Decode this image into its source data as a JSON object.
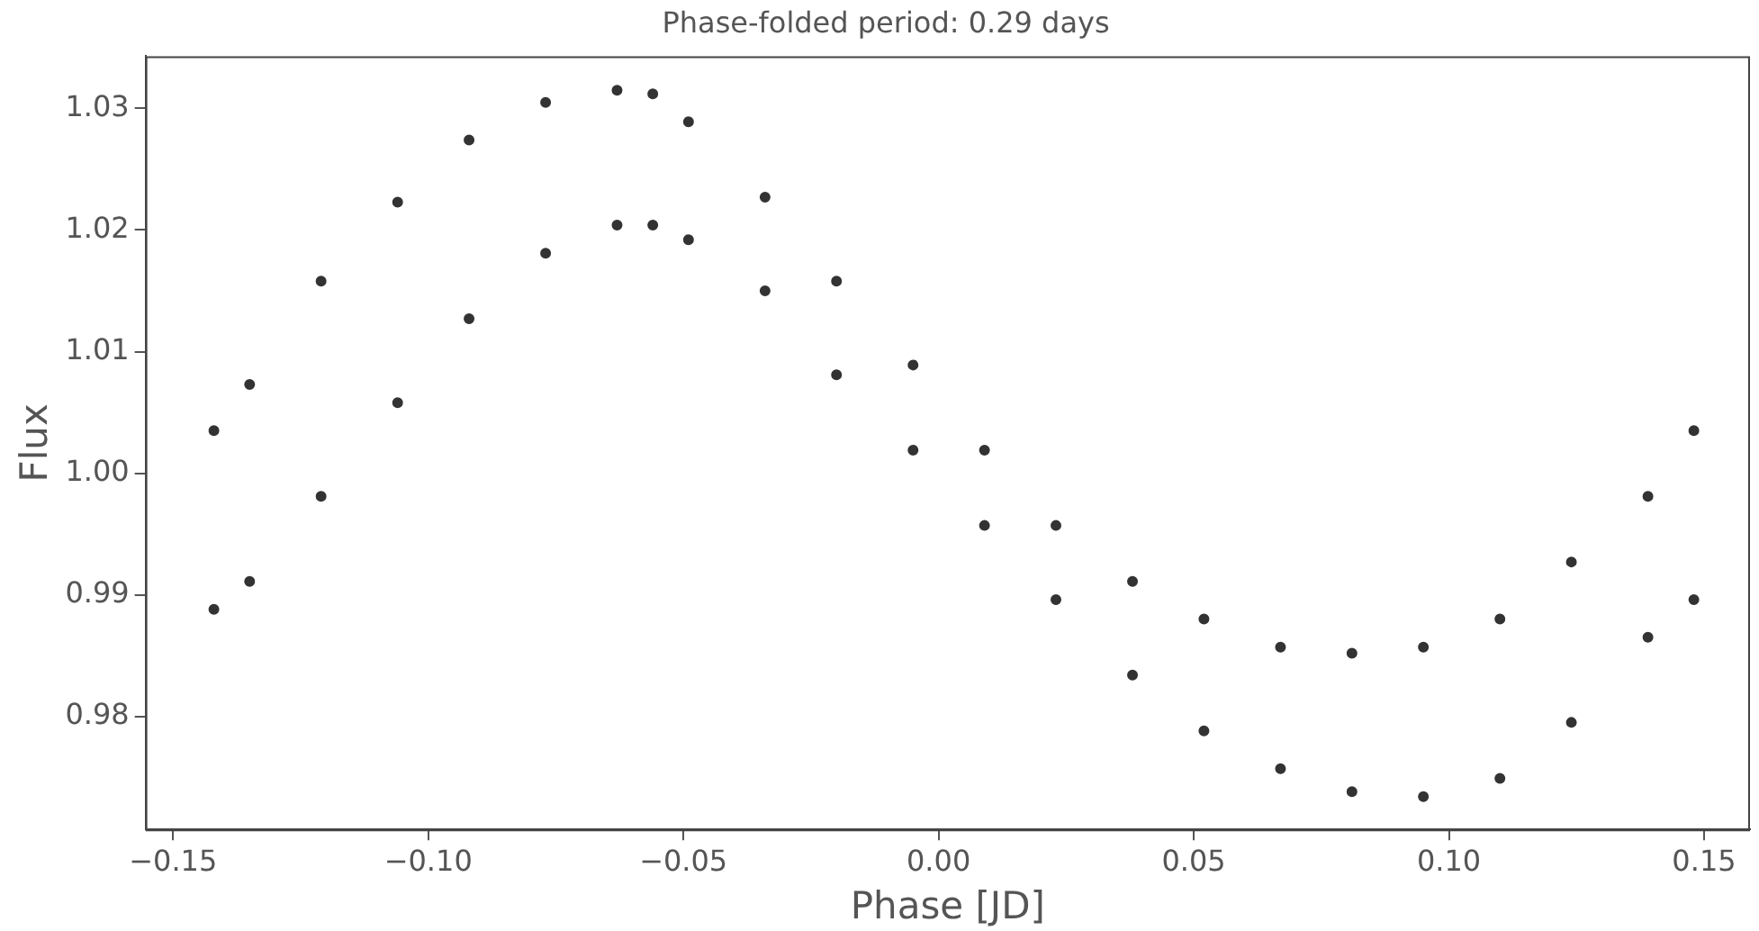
{
  "chart_data": {
    "type": "scatter",
    "title": "Phase-folded period: 0.29 days",
    "xlabel": "Phase [JD]",
    "ylabel": "Flux",
    "xlim": [
      -0.1554,
      0.159
    ],
    "xticks": [
      {
        "value": -0.15,
        "label": "−0.15"
      },
      {
        "value": -0.1,
        "label": "−0.10"
      },
      {
        "value": -0.05,
        "label": "−0.05"
      },
      {
        "value": 0,
        "label": "0.00"
      },
      {
        "value": 0.05,
        "label": "0.05"
      },
      {
        "value": 0.1,
        "label": "0.10"
      },
      {
        "value": 0.15,
        "label": "0.15"
      }
    ],
    "ylim": [
      0.9707,
      1.0343
    ],
    "yticks": [
      {
        "value": 0.98,
        "label": "0.98"
      },
      {
        "value": 0.99,
        "label": "0.99"
      },
      {
        "value": 1.0,
        "label": "1.00"
      },
      {
        "value": 1.01,
        "label": "1.01"
      },
      {
        "value": 1.02,
        "label": "1.02"
      },
      {
        "value": 1.03,
        "label": "1.03"
      }
    ],
    "grid": false,
    "legend": false,
    "marker": "circle",
    "series": [
      {
        "color": "#333333",
        "x": [
          -0.142,
          -0.135,
          -0.121,
          -0.106,
          -0.092,
          -0.077,
          -0.063,
          -0.056,
          -0.049,
          -0.034,
          -0.02,
          -0.005,
          0.009,
          0.023,
          0.038,
          0.052,
          0.067,
          0.081,
          0.095,
          0.11,
          0.124,
          0.139,
          0.148
        ],
        "values": [
          1.0035,
          1.0073,
          1.0158,
          1.0223,
          1.0274,
          1.0305,
          1.0315,
          1.0312,
          1.0289,
          1.0227,
          1.0158,
          1.0089,
          1.0019,
          0.9957,
          0.9911,
          0.988,
          0.9857,
          0.9852,
          0.9857,
          0.988,
          0.9927,
          0.9981,
          1.0035
        ]
      },
      {
        "color": "#333333",
        "x": [
          -0.142,
          -0.135,
          -0.121,
          -0.106,
          -0.092,
          -0.077,
          -0.063,
          -0.056,
          -0.049,
          -0.034,
          -0.02,
          -0.005,
          0.009,
          0.023,
          0.038,
          0.052,
          0.067,
          0.081,
          0.095,
          0.11,
          0.124,
          0.139,
          0.148
        ],
        "values": [
          0.9888,
          0.9911,
          0.9981,
          1.0058,
          1.0127,
          1.0181,
          1.0204,
          1.0204,
          1.0192,
          1.015,
          1.0081,
          1.0019,
          0.9957,
          0.9896,
          0.9834,
          0.9788,
          0.9757,
          0.9738,
          0.9734,
          0.9749,
          0.9795,
          0.9865,
          0.9896
        ]
      }
    ]
  }
}
